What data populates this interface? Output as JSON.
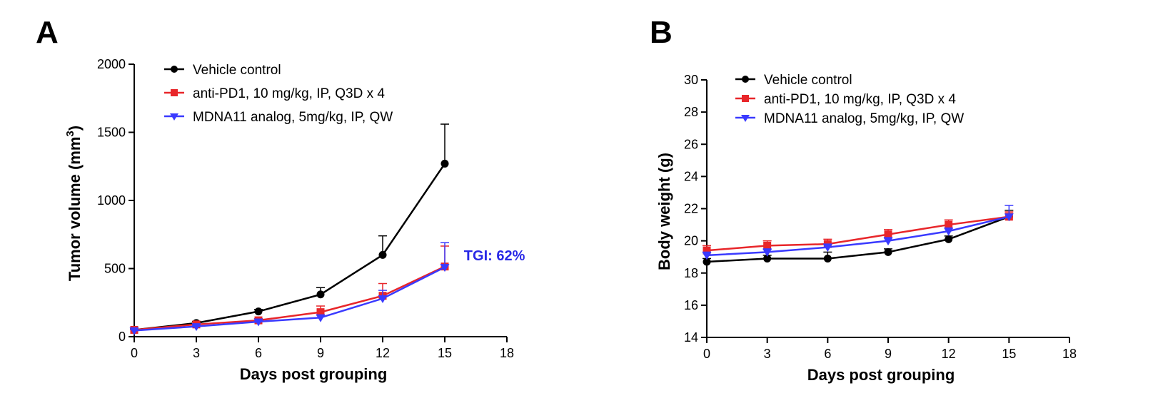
{
  "panels": {
    "a": {
      "letter": "A"
    },
    "b": {
      "letter": "B"
    }
  },
  "chart_data": [
    {
      "panel": "A",
      "type": "line",
      "title": "",
      "xlabel": "Days post grouping",
      "ylabel_main": "Tumor volume (mm",
      "ylabel_sup": "3",
      "ylabel_end": ")",
      "xlim": [
        0,
        18
      ],
      "ylim": [
        0,
        2000
      ],
      "xticks": [
        0,
        3,
        6,
        9,
        12,
        15,
        18
      ],
      "yticks": [
        0,
        500,
        1000,
        1500,
        2000
      ],
      "legend_position": "top-left",
      "grid": false,
      "x": [
        0,
        3,
        6,
        9,
        12,
        15
      ],
      "series": [
        {
          "name": "Vehicle control",
          "color": "#000000",
          "marker": "circle",
          "values": [
            50,
            100,
            185,
            310,
            600,
            1270
          ],
          "errors": [
            10,
            12,
            15,
            50,
            140,
            290
          ]
        },
        {
          "name": "anti-PD1, 10 mg/kg, IP, Q3D x 4",
          "color": "#e8262a",
          "marker": "square",
          "values": [
            50,
            90,
            120,
            180,
            300,
            515
          ],
          "errors": [
            10,
            10,
            12,
            45,
            90,
            150
          ]
        },
        {
          "name": "MDNA11 analog, 5mg/kg, IP, QW",
          "color": "#3a3aff",
          "marker": "triangle-down",
          "values": [
            45,
            75,
            110,
            140,
            280,
            510
          ],
          "errors": [
            8,
            8,
            10,
            20,
            60,
            180
          ]
        }
      ],
      "annotations": [
        {
          "text": "TGI: 62%",
          "color": "#2828e6",
          "x": 17.4,
          "y": 560
        }
      ]
    },
    {
      "panel": "B",
      "type": "line",
      "title": "",
      "xlabel": "Days post grouping",
      "ylabel": "Body weight (g)",
      "xlim": [
        0,
        18
      ],
      "ylim": [
        14,
        30
      ],
      "xticks": [
        0,
        3,
        6,
        9,
        12,
        15,
        18
      ],
      "yticks": [
        14,
        16,
        18,
        20,
        22,
        24,
        26,
        28,
        30
      ],
      "legend_position": "top-left",
      "grid": false,
      "x": [
        0,
        3,
        6,
        9,
        12,
        15
      ],
      "series": [
        {
          "name": "Vehicle control",
          "color": "#000000",
          "marker": "circle",
          "values": [
            18.7,
            18.9,
            18.9,
            19.3,
            20.1,
            21.5
          ],
          "errors": [
            0.2,
            0.2,
            0.4,
            0.2,
            0.2,
            0.4
          ]
        },
        {
          "name": "anti-PD1, 10 mg/kg, IP, Q3D x 4",
          "color": "#e8262a",
          "marker": "square",
          "values": [
            19.4,
            19.7,
            19.8,
            20.4,
            21.0,
            21.5
          ],
          "errors": [
            0.3,
            0.3,
            0.3,
            0.3,
            0.3,
            0.3
          ]
        },
        {
          "name": "MDNA11 analog, 5mg/kg, IP, QW",
          "color": "#3a3aff",
          "marker": "triangle-down",
          "values": [
            19.1,
            19.3,
            19.6,
            20.0,
            20.6,
            21.5
          ],
          "errors": [
            0.2,
            0.2,
            0.2,
            0.2,
            0.2,
            0.7
          ]
        }
      ],
      "annotations": []
    }
  ]
}
